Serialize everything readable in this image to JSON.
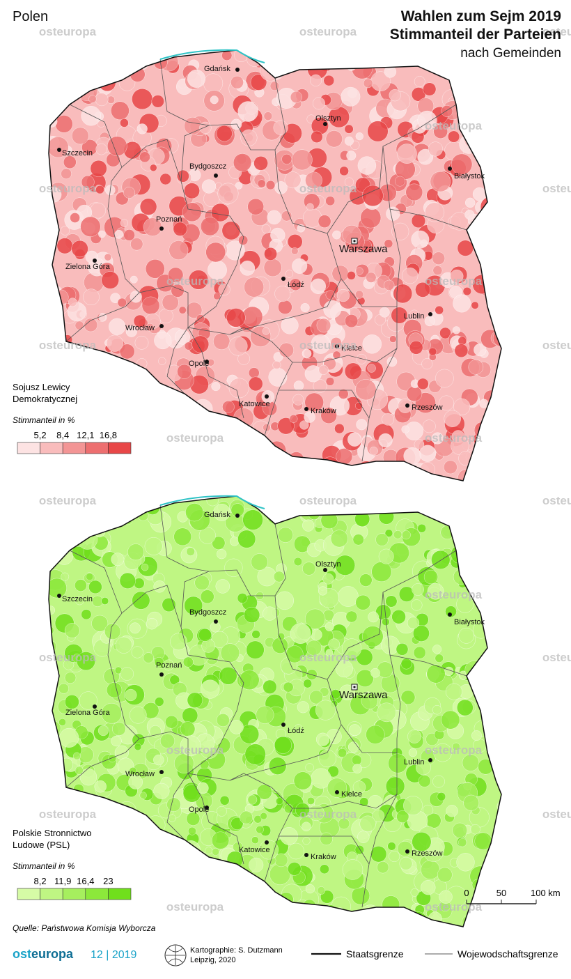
{
  "header": {
    "country": "Polen",
    "title_line1": "Wahlen zum Sejm 2019",
    "title_line2": "Stimmanteil der Parteien",
    "subtitle": "nach Gemeinden"
  },
  "watermark": "osteuropa",
  "cities": [
    "Gdańsk",
    "Szczecin",
    "Olsztyn",
    "Białystok",
    "Bydgoszcz",
    "Poznań",
    "Warszawa",
    "Zielona Góra",
    "Łódź",
    "Lublin",
    "Wrocław",
    "Kielce",
    "Opole",
    "Katowice",
    "Kraków",
    "Rzeszów"
  ],
  "maps": [
    {
      "party": [
        "Sojusz Lewicy",
        "Demokratycznej"
      ],
      "legend_title": "Stimmanteil in %",
      "breaks": [
        "5,2",
        "8,4",
        "12,1",
        "16,8"
      ],
      "colors": [
        "#fde3e3",
        "#f9bcbc",
        "#f39595",
        "#ed6f70",
        "#e84748"
      ]
    },
    {
      "party": [
        "Polskie Stronnictwo",
        "Ludowe (PSL)"
      ],
      "legend_title": "Stimmanteil in %",
      "breaks": [
        "8,2",
        "11,9",
        "16,4",
        "23"
      ],
      "colors": [
        "#d6fba6",
        "#bff683",
        "#a6ef5e",
        "#8ce83b",
        "#70df1c"
      ]
    }
  ],
  "scale": [
    "0",
    "50",
    "100 km"
  ],
  "source": "Quelle: Państwowa Komisja Wyborcza",
  "footer": {
    "brand_a": "ost",
    "brand_b": "europa",
    "issue": "12 | 2019",
    "credits": [
      "Kartographie: S. Dutzmann",
      "Leipzig, 2020"
    ],
    "legend": [
      "Staatsgrenze",
      "Wojewodschaftsgrenze"
    ]
  }
}
